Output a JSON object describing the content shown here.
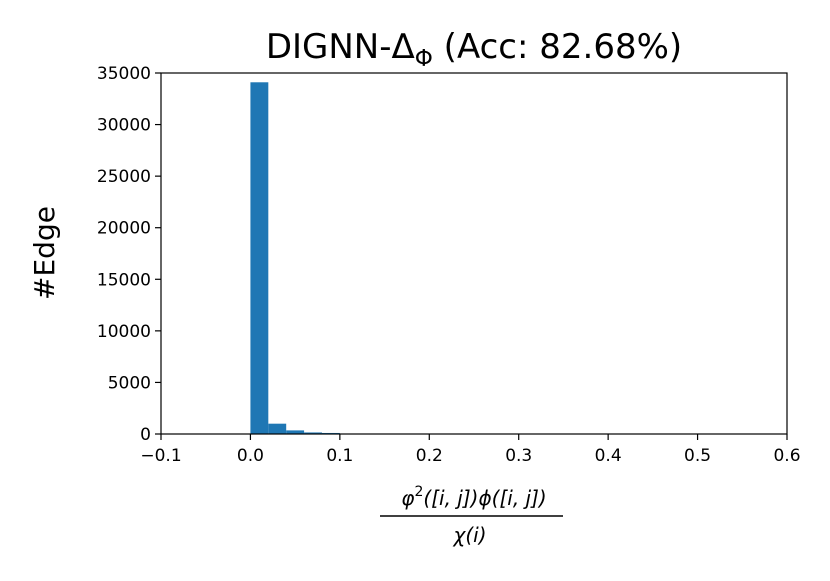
{
  "chart_data": {
    "type": "histogram",
    "title": [
      "DIGNN-Δ",
      "Φ",
      " (Acc: 82.68%)"
    ],
    "ylabel": "#Edge",
    "xlabel": {
      "numerator": [
        "φ",
        "2",
        "([i, j])ϕ([i, j])"
      ],
      "denominator": "χ(i)"
    },
    "bins": [
      0,
      0.02,
      0.04,
      0.06,
      0.08,
      0.1
    ],
    "values": [
      34100,
      1000,
      350,
      150,
      100
    ],
    "color": "#1f77b4",
    "xlim": [
      -0.1,
      0.6
    ],
    "xticks": [
      {
        "value": -0.1,
        "label": "−0.1"
      },
      {
        "value": 0,
        "label": "0.0"
      },
      0.1,
      0.2,
      0.3,
      0.4,
      0.5,
      0.6
    ],
    "ylim": [
      0,
      35000
    ],
    "yticks": [
      0,
      5000,
      10000,
      15000,
      20000,
      25000,
      30000,
      35000
    ],
    "grid": false
  }
}
